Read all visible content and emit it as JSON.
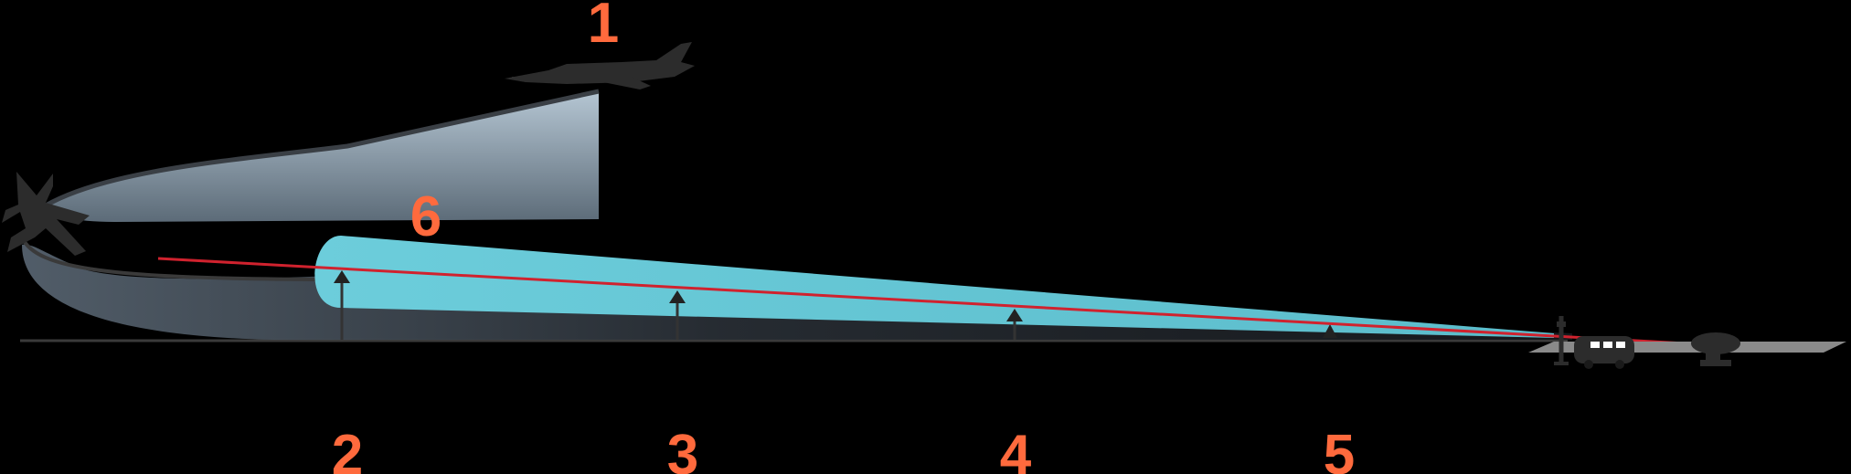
{
  "labels": {
    "one": "1",
    "two": "2",
    "three": "3",
    "four": "4",
    "five": "5",
    "six": "6"
  },
  "colors": {
    "background": "#000000",
    "label": "#ff6a3d",
    "guidance_line": "#d0222e",
    "approach_beam": "#63c4d3",
    "upper_zone_top": "#a9bcca",
    "upper_zone_bottom": "#5f6f7c",
    "silhouette": "#2c2c2c",
    "runway": "#8a8a8a"
  },
  "icons": {
    "lead_aircraft": "fighter-jet-side-icon",
    "approaching_aircraft": "fighter-jet-top-icon",
    "station": "mobile-station-van-icon",
    "antenna_mast": "antenna-mast-icon",
    "radar": "radar-dish-icon",
    "beacons": "marker-beacon-icon"
  }
}
